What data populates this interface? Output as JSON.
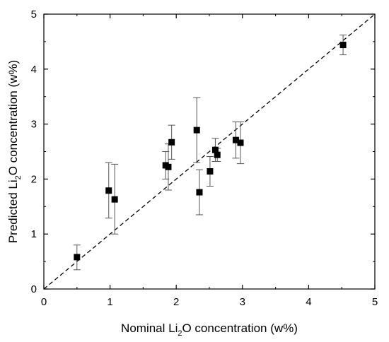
{
  "chart_data": {
    "type": "scatter",
    "title": "",
    "xlabel": {
      "pre": "Nominal Li",
      "sub": "2",
      "post": "O concentration (w%)"
    },
    "ylabel": {
      "pre": "Predicted Li",
      "sub": "2",
      "post": "O concentration (w%)"
    },
    "xlim": [
      0,
      5
    ],
    "ylim": [
      0,
      5
    ],
    "xticks": [
      "0",
      "1",
      "2",
      "3",
      "4",
      "5"
    ],
    "yticks": [
      "0",
      "1",
      "2",
      "3",
      "4",
      "5"
    ],
    "grid": false,
    "legend": "none",
    "reference_line": {
      "type": "identity",
      "style": "dashed",
      "from": [
        0,
        0
      ],
      "to": [
        5,
        5
      ]
    },
    "marker_color": "#000000",
    "errorbar_color": "#555555",
    "points": [
      {
        "x": 0.5,
        "y": 0.58,
        "err_low": 0.23,
        "err_high": 0.22
      },
      {
        "x": 0.98,
        "y": 1.79,
        "err_low": 0.5,
        "err_high": 0.51
      },
      {
        "x": 1.07,
        "y": 1.63,
        "err_low": 0.63,
        "err_high": 0.64
      },
      {
        "x": 1.84,
        "y": 2.25,
        "err_low": 0.25,
        "err_high": 0.25
      },
      {
        "x": 1.88,
        "y": 2.22,
        "err_low": 0.42,
        "err_high": 0.42
      },
      {
        "x": 1.93,
        "y": 2.67,
        "err_low": 0.31,
        "err_high": 0.31
      },
      {
        "x": 2.31,
        "y": 2.89,
        "err_low": 0.59,
        "err_high": 0.59
      },
      {
        "x": 2.35,
        "y": 1.76,
        "err_low": 0.41,
        "err_high": 0.41
      },
      {
        "x": 2.51,
        "y": 2.14,
        "err_low": 0.27,
        "err_high": 0.27
      },
      {
        "x": 2.59,
        "y": 2.53,
        "err_low": 0.21,
        "err_high": 0.21
      },
      {
        "x": 2.62,
        "y": 2.44,
        "err_low": 0.12,
        "err_high": 0.12
      },
      {
        "x": 2.9,
        "y": 2.71,
        "err_low": 0.33,
        "err_high": 0.33
      },
      {
        "x": 2.97,
        "y": 2.66,
        "err_low": 0.38,
        "err_high": 0.38
      },
      {
        "x": 4.52,
        "y": 4.44,
        "err_low": 0.18,
        "err_high": 0.18
      }
    ]
  }
}
